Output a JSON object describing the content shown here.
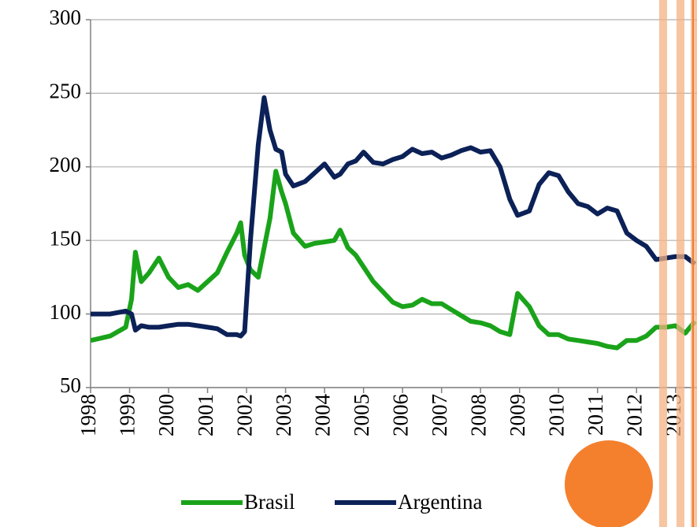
{
  "chart_data": {
    "type": "line",
    "x": [
      1998,
      1998.5,
      1998.9,
      1999.05,
      1999.15,
      1999.3,
      1999.5,
      1999.75,
      2000,
      2000.25,
      2000.5,
      2000.75,
      2001,
      2001.25,
      2001.5,
      2001.75,
      2001.85,
      2001.95,
      2002.1,
      2002.3,
      2002.45,
      2002.6,
      2002.75,
      2002.9,
      2003,
      2003.2,
      2003.5,
      2003.75,
      2004,
      2004.25,
      2004.4,
      2004.6,
      2004.8,
      2005,
      2005.25,
      2005.5,
      2005.75,
      2006,
      2006.25,
      2006.5,
      2006.75,
      2007,
      2007.25,
      2007.5,
      2007.75,
      2008,
      2008.25,
      2008.5,
      2008.75,
      2008.95,
      2009.25,
      2009.5,
      2009.75,
      2010,
      2010.25,
      2010.5,
      2010.75,
      2011,
      2011.25,
      2011.5,
      2011.75,
      2012,
      2012.25,
      2012.5,
      2012.75,
      2013,
      2013.25,
      2013.5
    ],
    "series": [
      {
        "name": "Brasil",
        "color": "#1aa31a",
        "values": [
          82,
          85,
          91,
          110,
          142,
          122,
          128,
          138,
          125,
          118,
          120,
          116,
          122,
          128,
          142,
          155,
          162,
          140,
          130,
          125,
          145,
          165,
          197,
          183,
          175,
          155,
          146,
          148,
          149,
          150,
          157,
          145,
          140,
          132,
          122,
          115,
          108,
          105,
          106,
          110,
          107,
          107,
          103,
          99,
          95,
          94,
          92,
          88,
          86,
          114,
          105,
          92,
          86,
          86,
          83,
          82,
          81,
          80,
          78,
          77,
          82,
          82,
          85,
          91,
          91,
          92,
          87,
          95
        ]
      },
      {
        "name": "Argentina",
        "color": "#0b2157",
        "values": [
          100,
          100,
          102,
          100,
          89,
          92,
          91,
          91,
          92,
          93,
          93,
          92,
          91,
          90,
          86,
          86,
          85,
          88,
          150,
          215,
          247,
          225,
          212,
          210,
          195,
          187,
          190,
          196,
          202,
          193,
          195,
          202,
          204,
          210,
          203,
          202,
          205,
          207,
          212,
          209,
          210,
          206,
          208,
          211,
          213,
          210,
          211,
          200,
          178,
          167,
          170,
          188,
          196,
          194,
          183,
          175,
          173,
          168,
          172,
          170,
          155,
          150,
          146,
          137,
          138,
          139,
          139,
          134
        ]
      }
    ],
    "xlim": [
      1998,
      2013.55
    ],
    "xticks": [
      1998,
      1999,
      2000,
      2001,
      2002,
      2003,
      2004,
      2005,
      2006,
      2007,
      2008,
      2009,
      2010,
      2011,
      2012,
      2013
    ],
    "ylim": [
      50,
      300
    ],
    "yticks": [
      50,
      100,
      150,
      200,
      250,
      300
    ],
    "grid": true
  }
}
